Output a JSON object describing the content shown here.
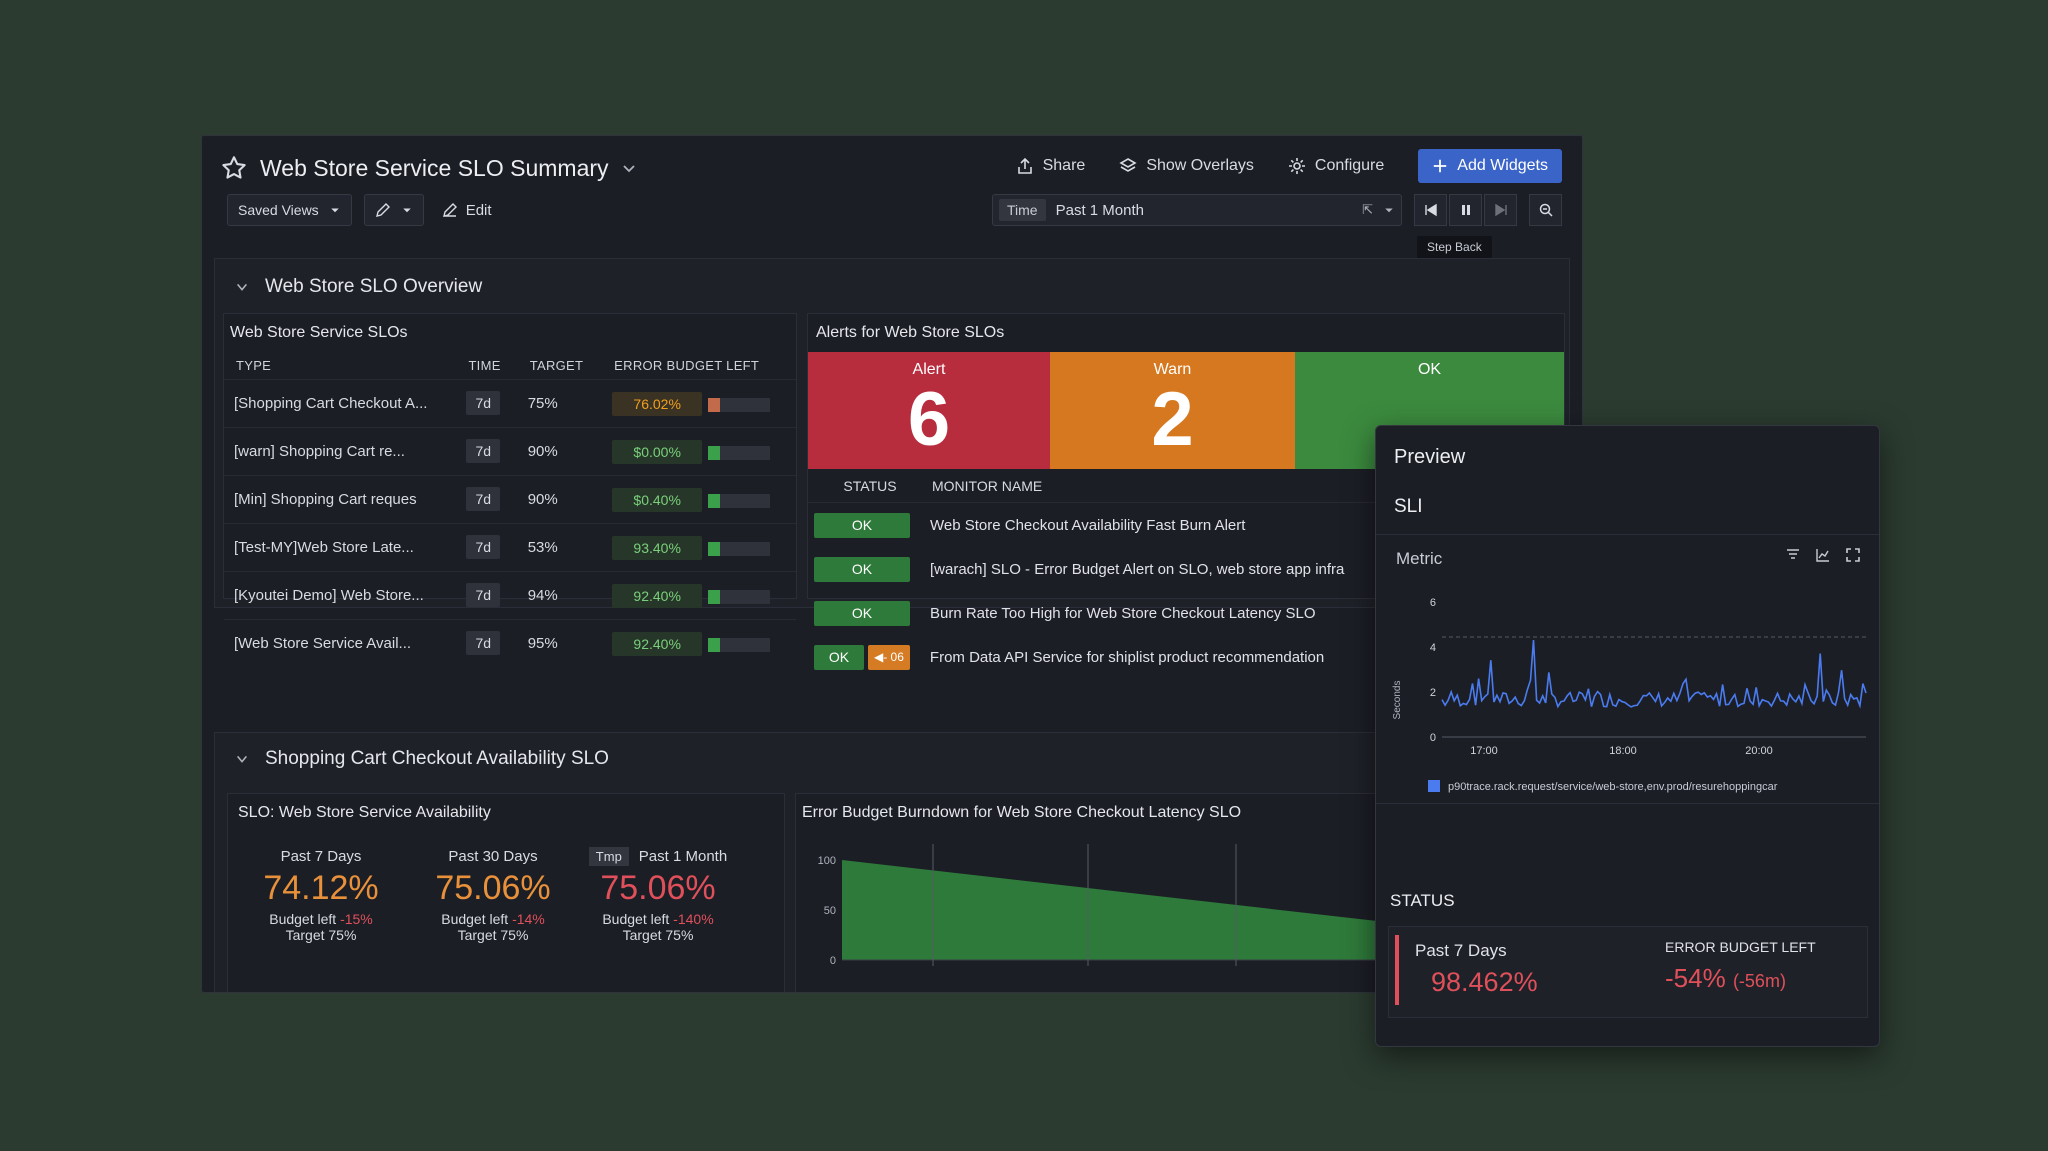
{
  "header": {
    "title": "Web Store Service SLO Summary",
    "actions": {
      "share": "Share",
      "overlays": "Show Overlays",
      "configure": "Configure",
      "add_widgets": "Add Widgets"
    },
    "saved_views": "Saved Views",
    "edit": "Edit",
    "time_label": "Time",
    "time_value": "Past 1 Month",
    "time_suffix": "⇱",
    "tooltip": "Step Back"
  },
  "overview": {
    "title": "Web Store SLO Overview",
    "slos": {
      "title": "Web Store Service SLOs",
      "columns": [
        "TYPE",
        "TIME",
        "TARGET",
        "ERROR BUDGET LEFT"
      ],
      "rows": [
        {
          "type": "[Shopping Cart Checkout A...",
          "time": "7d",
          "target": "75%",
          "budget": "76.02%",
          "color": "#f0a020",
          "bg": "#3a3222",
          "bar": "#c26a4a"
        },
        {
          "type": "[warn] Shopping Cart re...",
          "time": "7d",
          "target": "90%",
          "budget": "$0.00%",
          "color": "#7ad07a",
          "bg": "#26372a",
          "bar": "#3aa04a"
        },
        {
          "type": "[Min] Shopping Cart reques",
          "time": "7d",
          "target": "90%",
          "budget": "$0.40%",
          "color": "#7ad07a",
          "bg": "#26372a",
          "bar": "#3aa04a"
        },
        {
          "type": "[Test-MY]Web Store Late...",
          "time": "7d",
          "target": "53%",
          "budget": "93.40%",
          "color": "#7ad07a",
          "bg": "#26372a",
          "bar": "#3aa04a"
        },
        {
          "type": "[Kyoutei Demo] Web Store...",
          "time": "7d",
          "target": "94%",
          "budget": "92.40%",
          "color": "#7ad07a",
          "bg": "#26372a",
          "bar": "#3aa04a"
        },
        {
          "type": "[Web Store Service Avail...",
          "time": "7d",
          "target": "95%",
          "budget": "92.40%",
          "color": "#7ad07a",
          "bg": "#26372a",
          "bar": "#3aa04a"
        }
      ]
    },
    "alerts": {
      "title": "Alerts for Web Store SLOs",
      "tiles": [
        {
          "label": "Alert",
          "count": "6",
          "color": "#b72d3e"
        },
        {
          "label": "Warn",
          "count": "2",
          "color": "#d6781f"
        },
        {
          "label": "OK",
          "count": "",
          "color": "#3b8a3e"
        }
      ],
      "columns": [
        "STATUS",
        "MONITOR NAME"
      ],
      "rows": [
        {
          "status": "OK",
          "extra": "",
          "name": "Web Store Checkout Availability Fast Burn Alert"
        },
        {
          "status": "OK",
          "extra": "",
          "name": "[warach] SLO - Error Budget Alert on SLO, web store app infra"
        },
        {
          "status": "OK",
          "extra": "",
          "name": "Burn Rate Too High for Web Store Checkout Latency SLO"
        },
        {
          "status": "OK",
          "extra": "◀- 06",
          "name": "From Data API Service for shiplist product recommendation"
        }
      ]
    }
  },
  "checkout": {
    "title": "Shopping Cart Checkout Availability SLO",
    "availability": {
      "title": "SLO: Web Store Service Availability",
      "stats": [
        {
          "period": "Past 7 Days",
          "tag": "",
          "value": "74.12%",
          "budget_label": "Budget left ",
          "budget": "-15%",
          "target": "Target 75%",
          "color": "#e8913a"
        },
        {
          "period": "Past 30 Days",
          "tag": "",
          "value": "75.06%",
          "budget_label": "Budget left ",
          "budget": "-14%",
          "target": "Target 75%",
          "color": "#e8913a"
        },
        {
          "period": "Past 1 Month",
          "tag": "Tmp",
          "value": "75.06%",
          "budget_label": "Budget left ",
          "budget": "-140%",
          "target": "Target 75%",
          "color": "#e0505a"
        }
      ]
    },
    "burndown": {
      "title": "Error Budget Burndown for Web Store Checkout Latency SLO",
      "yticks": [
        "100",
        "50",
        "0"
      ]
    }
  },
  "preview": {
    "title": "Preview",
    "sli": "SLI",
    "metric": "Metric",
    "ylabel": "Seconds",
    "yticks": [
      "6",
      "4",
      "2",
      "0"
    ],
    "xticks": [
      "17:00",
      "18:00",
      "20:00"
    ],
    "legend": "p90trace.rack.request/service/web-store,env.prod/resurehoppingcar",
    "status_title": "STATUS",
    "period": "Past 7 Days",
    "value": "98.462%",
    "ebl_label": "ERROR BUDGET LEFT",
    "ebl_value": "-54%",
    "ebl_extra": "(-56m)"
  },
  "colors": {
    "accent": "#3b64c8",
    "ok": "#2e7a3a",
    "alert": "#b72d3e",
    "warn": "#d6781f",
    "line": "#4a7cf0",
    "area": "#2e7a3a"
  }
}
